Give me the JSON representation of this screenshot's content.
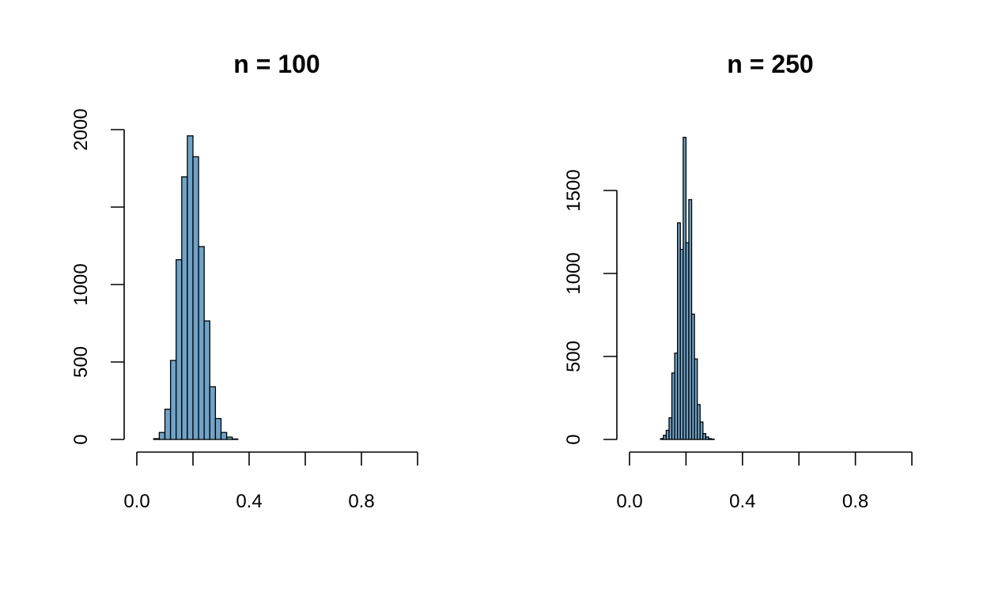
{
  "colors": {
    "bar_fill": "#6fa3c8",
    "bar_stroke": "#000000"
  },
  "chart_data": [
    {
      "type": "bar",
      "title": "n = 100",
      "xlabel": "",
      "ylabel": "",
      "xlim": [
        0,
        1
      ],
      "ylim": [
        0,
        2000
      ],
      "x_ticks": [
        0,
        0.2,
        0.4,
        0.6,
        0.8,
        1.0
      ],
      "x_tick_labels": [
        "0.0",
        "",
        "0.4",
        "",
        "0.8",
        ""
      ],
      "y_ticks": [
        0,
        500,
        1000,
        1500,
        2000
      ],
      "y_tick_labels": [
        "0",
        "500",
        "1000",
        "",
        "2000"
      ],
      "grid": false,
      "bin_width": 0.02,
      "bins_start": [
        0.06,
        0.08,
        0.1,
        0.12,
        0.14,
        0.16,
        0.18,
        0.2,
        0.22,
        0.24,
        0.26,
        0.28,
        0.3,
        0.32,
        0.34
      ],
      "values": [
        5,
        45,
        195,
        510,
        1160,
        1695,
        1960,
        1825,
        1245,
        765,
        340,
        135,
        45,
        15,
        3
      ]
    },
    {
      "type": "bar",
      "title": "n = 250",
      "xlabel": "",
      "ylabel": "",
      "xlim": [
        0,
        1
      ],
      "ylim": [
        0,
        1500
      ],
      "x_ticks": [
        0,
        0.2,
        0.4,
        0.6,
        0.8,
        1.0
      ],
      "x_tick_labels": [
        "0.0",
        "",
        "0.4",
        "",
        "0.8",
        ""
      ],
      "y_ticks": [
        0,
        500,
        1000,
        1500
      ],
      "y_tick_labels": [
        "0",
        "500",
        "1000",
        "1500"
      ],
      "grid": false,
      "bin_width": 0.01,
      "bins_start": [
        0.11,
        0.12,
        0.13,
        0.14,
        0.15,
        0.16,
        0.17,
        0.18,
        0.19,
        0.2,
        0.21,
        0.22,
        0.23,
        0.24,
        0.25,
        0.26,
        0.27,
        0.28,
        0.29
      ],
      "values": [
        5,
        25,
        55,
        130,
        400,
        520,
        1305,
        1145,
        1820,
        1185,
        1445,
        755,
        485,
        210,
        105,
        35,
        15,
        5,
        2
      ]
    }
  ]
}
